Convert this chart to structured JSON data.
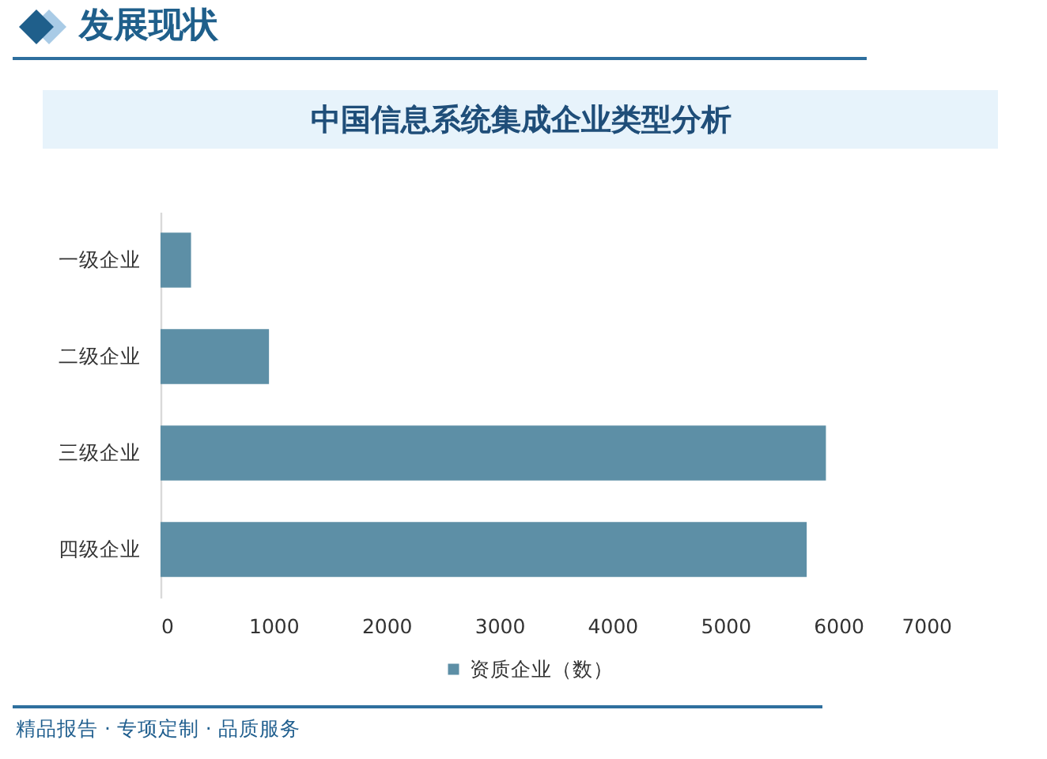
{
  "chart_data": {
    "type": "bar",
    "orientation": "horizontal",
    "title": "中国信息系统集成企业类型分析",
    "categories": [
      "一级企业",
      "二级企业",
      "三级企业",
      "四级企业"
    ],
    "series": [
      {
        "name": "资质企业（数）",
        "color": "#5d8fa6",
        "values": [
          270,
          960,
          5890,
          5720
        ]
      }
    ],
    "xlim": [
      0,
      7000
    ],
    "xticks": [
      0,
      1000,
      2000,
      3000,
      4000,
      5000,
      6000,
      7000
    ],
    "grid": false,
    "legend": "bottom",
    "annotations": [
      "发展现状",
      "精品报告 · 专项定制 · 品质服务"
    ]
  }
}
